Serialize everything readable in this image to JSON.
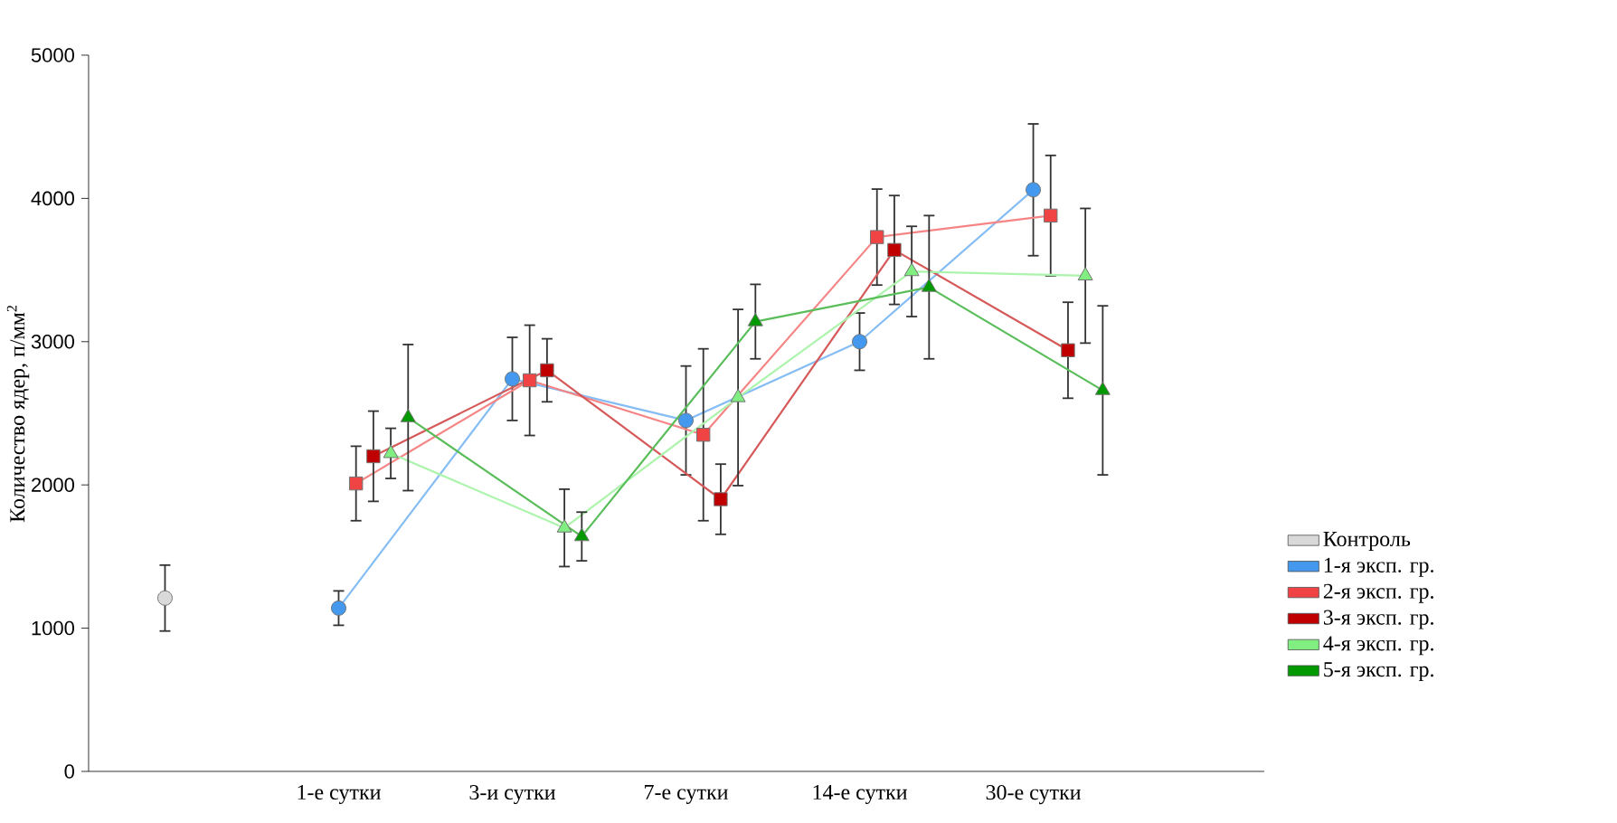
{
  "chart_data": {
    "type": "line",
    "ylabel": "Количество ядер, п/мм$^{2}$",
    "categories": [
      null,
      "1-е сутки",
      "3-и сутки",
      "7-е сутки",
      "14-е сутки",
      "30-е сутки"
    ],
    "ylim": [
      0,
      5000
    ],
    "yticks": [
      0,
      1000,
      2000,
      3000,
      4000,
      5000
    ],
    "legend": "bottom right",
    "grid": false,
    "series": [
      {
        "name": "Контроль",
        "color": "#d9d9d9",
        "marker": "circle",
        "values": [
          1210,
          null,
          null,
          null,
          null,
          null
        ],
        "errors": [
          230,
          null,
          null,
          null,
          null,
          null
        ]
      },
      {
        "name": "1-я эксп. гр.",
        "color": "#4499ee",
        "marker": "circle",
        "values": [
          null,
          1140,
          2740,
          2450,
          3000,
          4060
        ],
        "errors": [
          null,
          120,
          290,
          380,
          200,
          460
        ]
      },
      {
        "name": "2-я эксп. гр.",
        "color": "#f04444",
        "marker": "square",
        "values": [
          null,
          2010,
          2730,
          2350,
          3730,
          3880
        ],
        "errors": [
          null,
          260,
          385,
          600,
          335,
          420
        ]
      },
      {
        "name": "3-я эксп. гр.",
        "color": "#c00000",
        "marker": "square",
        "values": [
          null,
          2200,
          2800,
          1900,
          3640,
          2940
        ],
        "errors": [
          null,
          315,
          220,
          245,
          380,
          335
        ]
      },
      {
        "name": "4-я эксп. гр.",
        "color": "#80ee80",
        "marker": "triangle",
        "values": [
          null,
          2220,
          1700,
          2610,
          3490,
          3460
        ],
        "errors": [
          null,
          175,
          270,
          615,
          315,
          470
        ]
      },
      {
        "name": "5-я эксп. гр.",
        "color": "#009900",
        "marker": "triangle",
        "values": [
          null,
          2470,
          1640,
          3140,
          3380,
          2660
        ],
        "errors": [
          null,
          510,
          170,
          260,
          500,
          590
        ]
      }
    ]
  }
}
